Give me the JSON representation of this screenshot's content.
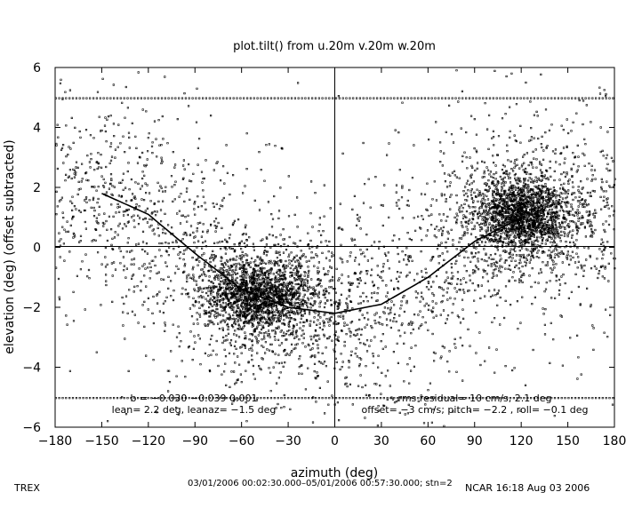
{
  "chart_data": {
    "type": "scatter",
    "title": "plot.tilt() from u.20m v.20m w.20m",
    "xlabel": "azimuth (deg)",
    "ylabel": "elevation (deg)  (offset subtracted)",
    "xlim": [
      -180,
      180
    ],
    "ylim": [
      -6,
      6
    ],
    "x_ticks": [
      -180,
      -150,
      -120,
      -90,
      -60,
      -30,
      0,
      30,
      60,
      90,
      120,
      150,
      180
    ],
    "y_ticks": [
      -6,
      -4,
      -2,
      0,
      2,
      4,
      6
    ],
    "x_tick_labels": [
      "−180",
      "−150",
      "−120",
      "−90",
      "−60",
      "−30",
      "0",
      "30",
      "60",
      "90",
      "120",
      "150",
      "180"
    ],
    "y_tick_labels": [
      "−6",
      "−4",
      "−2",
      "0",
      "2",
      "4",
      "6"
    ],
    "grid": false,
    "zero_lines": true,
    "clusters": [
      {
        "center_x": -48,
        "center_y": -1.6,
        "spread_x": 17,
        "spread_y": 0.6
      },
      {
        "center_x": 120,
        "center_y": 1.1,
        "spread_x": 15,
        "spread_y": 0.6
      }
    ],
    "saturation_rows_y": [
      5,
      -5
    ],
    "fit_curve": {
      "name": "fit",
      "x": [
        -150,
        -120,
        -90,
        -60,
        -30,
        0,
        30,
        60,
        90,
        120
      ],
      "y": [
        1.8,
        1.1,
        -0.2,
        -1.4,
        -2.0,
        -2.2,
        -1.9,
        -1.0,
        0.2,
        1.0
      ]
    },
    "annotations": [
      "b = −0.030  −0.039  0.001",
      "lean= 2.2 deg, leanaz= −1.5 deg",
      "rms residual= 10 cm/s, 2.1 deg",
      "offset= −3 cm/s; pitch= −2.2 , roll= −0.1 deg"
    ]
  },
  "footer": {
    "project": "TREX",
    "time_range": "03/01/2006 00:02:30.000–05/01/2006 00:57:30.000; stn=2",
    "stamp": "NCAR 16:18 Aug 03 2006"
  }
}
